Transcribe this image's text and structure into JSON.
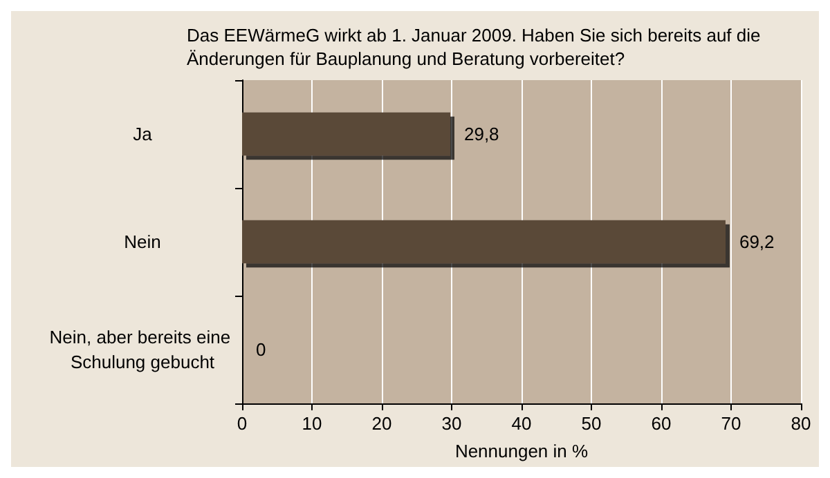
{
  "chart_data": {
    "type": "bar",
    "orientation": "horizontal",
    "title": "Das EEWärmeG wirkt ab 1. Januar 2009. Haben Sie sich bereits auf die Änderungen für Bauplanung und Beratung vorbereitet?",
    "categories": [
      "Ja",
      "Nein",
      "Nein, aber bereits eine Schulung gebucht"
    ],
    "values": [
      29.8,
      69.2,
      0
    ],
    "color": "#5a4838",
    "value_labels": [
      "29,8",
      "69,2",
      "0"
    ],
    "xlabel": "Nennungen in %",
    "xlim": [
      0,
      80
    ],
    "xticks": [
      0,
      10,
      20,
      30,
      40,
      50,
      60,
      70,
      80
    ],
    "grid": "x"
  }
}
